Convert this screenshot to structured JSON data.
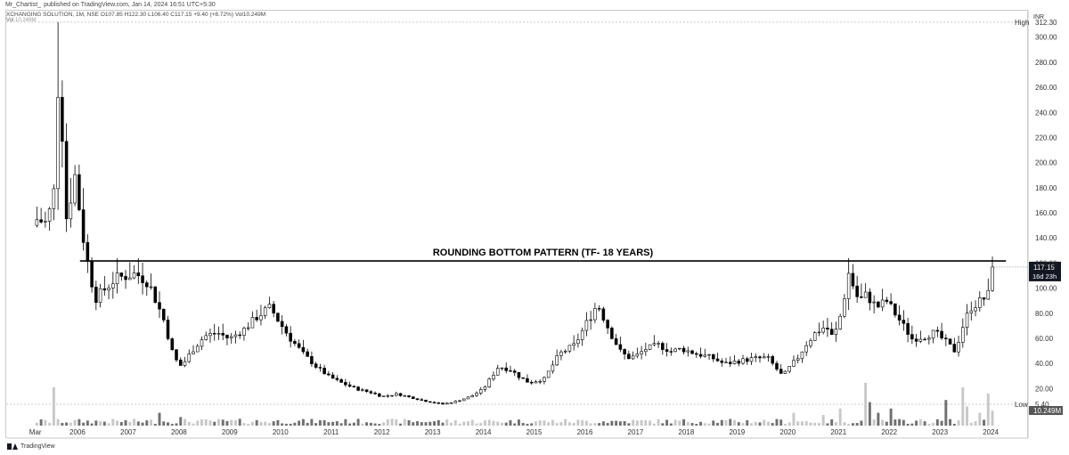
{
  "header": {
    "author": "Mr_Chartist_",
    "published_text": "published on TradingView.com, Jan 14, 2024 16:51 UTC+5:30"
  },
  "legend": {
    "symbol": "XCHANGING SOLUTION, 1M, NSE",
    "open": "O107.85",
    "high": "H122.30",
    "low": "L106.40",
    "close": "C117.15",
    "change": "+9.40 (+8.72%)",
    "volume": "Vol10.249M",
    "vol_label": "Vol",
    "vol_value": "10.249M"
  },
  "axis_currency": "INR",
  "footer": {
    "brand": "TradingView"
  },
  "colors": {
    "up": "#ffffff",
    "down": "#000000",
    "candle_outline": "#000000",
    "vol_up": "#c8c8c8",
    "vol_down": "#707070",
    "last_price_bg": "#131722"
  },
  "chart_data": {
    "type": "candlestick",
    "title": "ROUNDING BOTTOM PATTERN (TF- 18 YEARS)",
    "interval": "1M",
    "y_axis": {
      "min": 5,
      "max": 320,
      "ticks": [
        20,
        40,
        60,
        80,
        100,
        120,
        140,
        160,
        180,
        200,
        220,
        240,
        260,
        280,
        300
      ],
      "tick_labels": [
        "20.00",
        "40.00",
        "60.00",
        "80.00",
        "100.00",
        "120.00",
        "140.00",
        "160.00",
        "180.00",
        "200.00",
        "220.00",
        "240.00",
        "260.00",
        "280.00",
        "300.00"
      ]
    },
    "x_axis": {
      "labels": [
        "Mar",
        "2006",
        "2007",
        "2008",
        "2009",
        "2010",
        "2011",
        "2012",
        "2013",
        "2014",
        "2015",
        "2016",
        "2017",
        "2018",
        "2019",
        "2020",
        "2021",
        "2022",
        "2023",
        "2024"
      ],
      "label_positions": [
        2005.17,
        2006,
        2007,
        2008,
        2009,
        2010,
        2011,
        2012,
        2013,
        2014,
        2015,
        2016,
        2017,
        2018,
        2019,
        2020,
        2021,
        2022,
        2023,
        2024
      ],
      "range": [
        2005.0,
        2024.7
      ]
    },
    "markers": {
      "high": {
        "label": "High",
        "value_label": "312.30",
        "value": 312.3
      },
      "low": {
        "label": "Low",
        "value_label": "5.40",
        "value": 5.4
      },
      "last_price": {
        "value_label": "117.15",
        "countdown": "16d 23h",
        "value": 117.15
      },
      "volume_last": "10.249M"
    },
    "resistance_line": {
      "value": 122,
      "x_start": 2006.05,
      "x_end": 2024.3
    },
    "anchors": {
      "t": [
        2005.2,
        2005.4,
        2005.55,
        2005.65,
        2005.75,
        2005.95,
        2006.15,
        2006.35,
        2006.55,
        2006.75,
        2006.95,
        2007.15,
        2007.4,
        2007.7,
        2007.9,
        2008.05,
        2008.25,
        2008.5,
        2008.75,
        2009.0,
        2009.3,
        2009.55,
        2009.8,
        2009.95,
        2010.2,
        2010.45,
        2010.7,
        2010.95,
        2011.2,
        2011.5,
        2011.8,
        2012.0,
        2012.3,
        2012.6,
        2012.9,
        2013.2,
        2013.45,
        2013.75,
        2014.0,
        2014.3,
        2014.55,
        2014.7,
        2014.9,
        2015.2,
        2015.5,
        2015.8,
        2016.0,
        2016.25,
        2016.5,
        2016.7,
        2016.85,
        2017.0,
        2017.2,
        2017.45,
        2017.7,
        2017.9,
        2018.2,
        2018.5,
        2018.75,
        2019.0,
        2019.3,
        2019.6,
        2019.9,
        2020.05,
        2020.2,
        2020.35,
        2020.55,
        2020.75,
        2020.9,
        2021.05,
        2021.2,
        2021.4,
        2021.55,
        2021.75,
        2021.95,
        2022.2,
        2022.45,
        2022.7,
        2022.9,
        2023.1,
        2023.3,
        2023.45,
        2023.6,
        2023.8,
        2023.95,
        2024.05
      ],
      "close": [
        155,
        152,
        180,
        300,
        150,
        190,
        130,
        92,
        100,
        108,
        110,
        112,
        105,
        75,
        45,
        38,
        50,
        62,
        65,
        60,
        68,
        78,
        85,
        75,
        60,
        48,
        38,
        30,
        25,
        20,
        17,
        14,
        16,
        13,
        10,
        8,
        10,
        14,
        20,
        38,
        35,
        30,
        25,
        28,
        48,
        55,
        70,
        88,
        65,
        50,
        45,
        46,
        52,
        55,
        50,
        52,
        48,
        45,
        40,
        42,
        44,
        45,
        30,
        38,
        45,
        55,
        65,
        70,
        60,
        80,
        112,
        90,
        95,
        85,
        90,
        75,
        60,
        62,
        65,
        58,
        50,
        70,
        85,
        90,
        95,
        117
      ]
    },
    "volume_note": "Volume histogram shown at bottom pane (scaled to pane height)",
    "volume_spikes": {
      "t": [
        2005.55,
        2007.6,
        2008.0,
        2020.1,
        2020.7,
        2021.05,
        2021.55,
        2021.6,
        2021.75,
        2022.0,
        2023.15,
        2023.45,
        2023.5,
        2023.8,
        2023.95,
        2024.05
      ],
      "rel": [
        0.9,
        0.3,
        0.2,
        0.3,
        0.25,
        0.4,
        1.0,
        0.55,
        0.3,
        0.4,
        0.6,
        0.9,
        0.45,
        0.3,
        0.75,
        0.35
      ]
    }
  }
}
